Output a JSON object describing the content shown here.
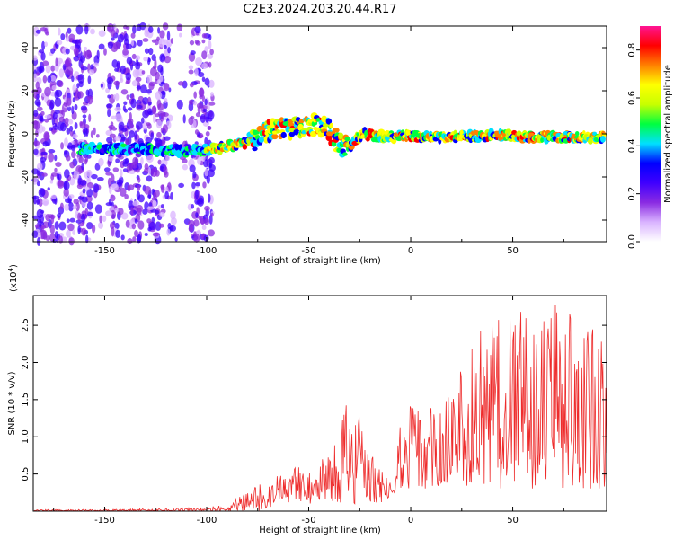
{
  "title": "C2E3.2024.203.20.44.R17",
  "chart_data": [
    {
      "type": "heatmap",
      "xlabel": "Height of straight line (km)",
      "ylabel": "Frequency (Hz)",
      "xlim": [
        -185,
        96
      ],
      "ylim": [
        -50,
        50
      ],
      "xticks": [
        -150,
        -100,
        -50,
        0,
        50
      ],
      "yticks": [
        -40,
        -20,
        0,
        20,
        40
      ],
      "colorbar": {
        "label": "Normalized spectral amplitude",
        "range": [
          0.0,
          0.9
        ],
        "ticks": [
          0.0,
          0.2,
          0.4,
          0.6,
          0.8
        ],
        "colors": [
          "#ffffff",
          "#d9b3ff",
          "#8a2be2",
          "#3f00ff",
          "#0000ff",
          "#00e0ff",
          "#00ff40",
          "#c8ff00",
          "#ffff00",
          "#ff8000",
          "#ff0000",
          "#ff1493"
        ]
      },
      "ridge": {
        "x": [
          -160,
          -150,
          -140,
          -130,
          -120,
          -110,
          -100,
          -90,
          -80,
          -75,
          -70,
          -65,
          -60,
          -55,
          -50,
          -45,
          -40,
          -35,
          -30,
          -27,
          -25,
          -22,
          -20,
          -15,
          -10,
          -5,
          0,
          10,
          20,
          30,
          40,
          50,
          60,
          70,
          80,
          90,
          95
        ],
        "y": [
          -7,
          -7,
          -7,
          -7,
          -7.5,
          -8,
          -7.5,
          -6,
          -4,
          -2,
          1,
          3,
          2,
          3,
          4,
          4.5,
          2,
          -5,
          -6,
          -3,
          -1,
          0,
          -1,
          -1,
          -1.5,
          -1,
          -1,
          -1.5,
          -1.5,
          -1,
          -0.5,
          -1,
          -1.5,
          -1.5,
          -1.5,
          -1.5,
          -1.5
        ]
      },
      "noise_band_km": [
        -185,
        -97
      ]
    },
    {
      "type": "line",
      "xlabel": "Height of straight line (km)",
      "ylabel": "SNR (10 * v/v)",
      "y_multiplier_label": "(x10^4)",
      "xlim": [
        -185,
        96
      ],
      "ylim": [
        0,
        2.9
      ],
      "xticks": [
        -150,
        -100,
        -50,
        0,
        50
      ],
      "yticks": [
        0.5,
        1.0,
        1.5,
        2.0,
        2.5
      ],
      "series": [
        {
          "color": "#ff0000",
          "envelope": {
            "x": [
              -185,
              -140,
              -120,
              -100,
              -90,
              -85,
              -80,
              -75,
              -70,
              -65,
              -60,
              -55,
              -50,
              -45,
              -40,
              -35,
              -30,
              -25,
              -20,
              -15,
              -10,
              -5,
              0,
              10,
              20,
              30,
              40,
              50,
              60,
              70,
              80,
              90,
              95
            ],
            "min": [
              0.0,
              0.0,
              0.0,
              0.0,
              0.0,
              0.0,
              0.0,
              0.0,
              0.05,
              0.1,
              0.1,
              0.1,
              0.1,
              0.1,
              0.1,
              0.1,
              0.1,
              0.1,
              0.1,
              0.1,
              0.2,
              0.3,
              0.3,
              0.3,
              0.4,
              0.3,
              0.3,
              0.3,
              0.3,
              0.3,
              0.3,
              0.3,
              0.3
            ],
            "max": [
              0.02,
              0.03,
              0.04,
              0.05,
              0.1,
              0.2,
              0.3,
              0.35,
              0.4,
              0.55,
              0.55,
              0.6,
              0.7,
              0.75,
              0.9,
              1.2,
              1.7,
              1.3,
              0.8,
              0.6,
              0.4,
              1.3,
              1.5,
              1.4,
              1.7,
              2.3,
              2.6,
              2.7,
              2.8,
              2.8,
              2.7,
              2.6,
              2.2
            ]
          }
        }
      ]
    }
  ]
}
